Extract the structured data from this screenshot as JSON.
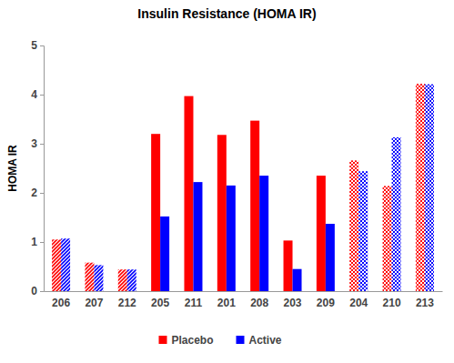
{
  "chart_data": {
    "type": "bar",
    "title": "Insulin Resistance (HOMA IR)",
    "y_label": "HOMA IR",
    "categories": [
      "206",
      "207",
      "212",
      "205",
      "211",
      "201",
      "208",
      "203",
      "209",
      "204",
      "210",
      "213"
    ],
    "series": [
      {
        "name": "Placebo",
        "color": "#ff0000",
        "values": [
          1.05,
          0.58,
          0.44,
          3.2,
          3.97,
          3.18,
          3.47,
          1.03,
          2.35,
          2.66,
          2.14,
          4.22
        ]
      },
      {
        "name": "Active",
        "color": "#0000ff",
        "values": [
          1.07,
          0.53,
          0.44,
          1.52,
          2.22,
          2.15,
          2.35,
          0.45,
          1.37,
          2.44,
          3.13,
          4.21
        ]
      }
    ],
    "ylim": [
      0,
      5
    ],
    "yticks": [
      0,
      1,
      2,
      3,
      4,
      5
    ],
    "grid": false,
    "legend": "bottom"
  }
}
